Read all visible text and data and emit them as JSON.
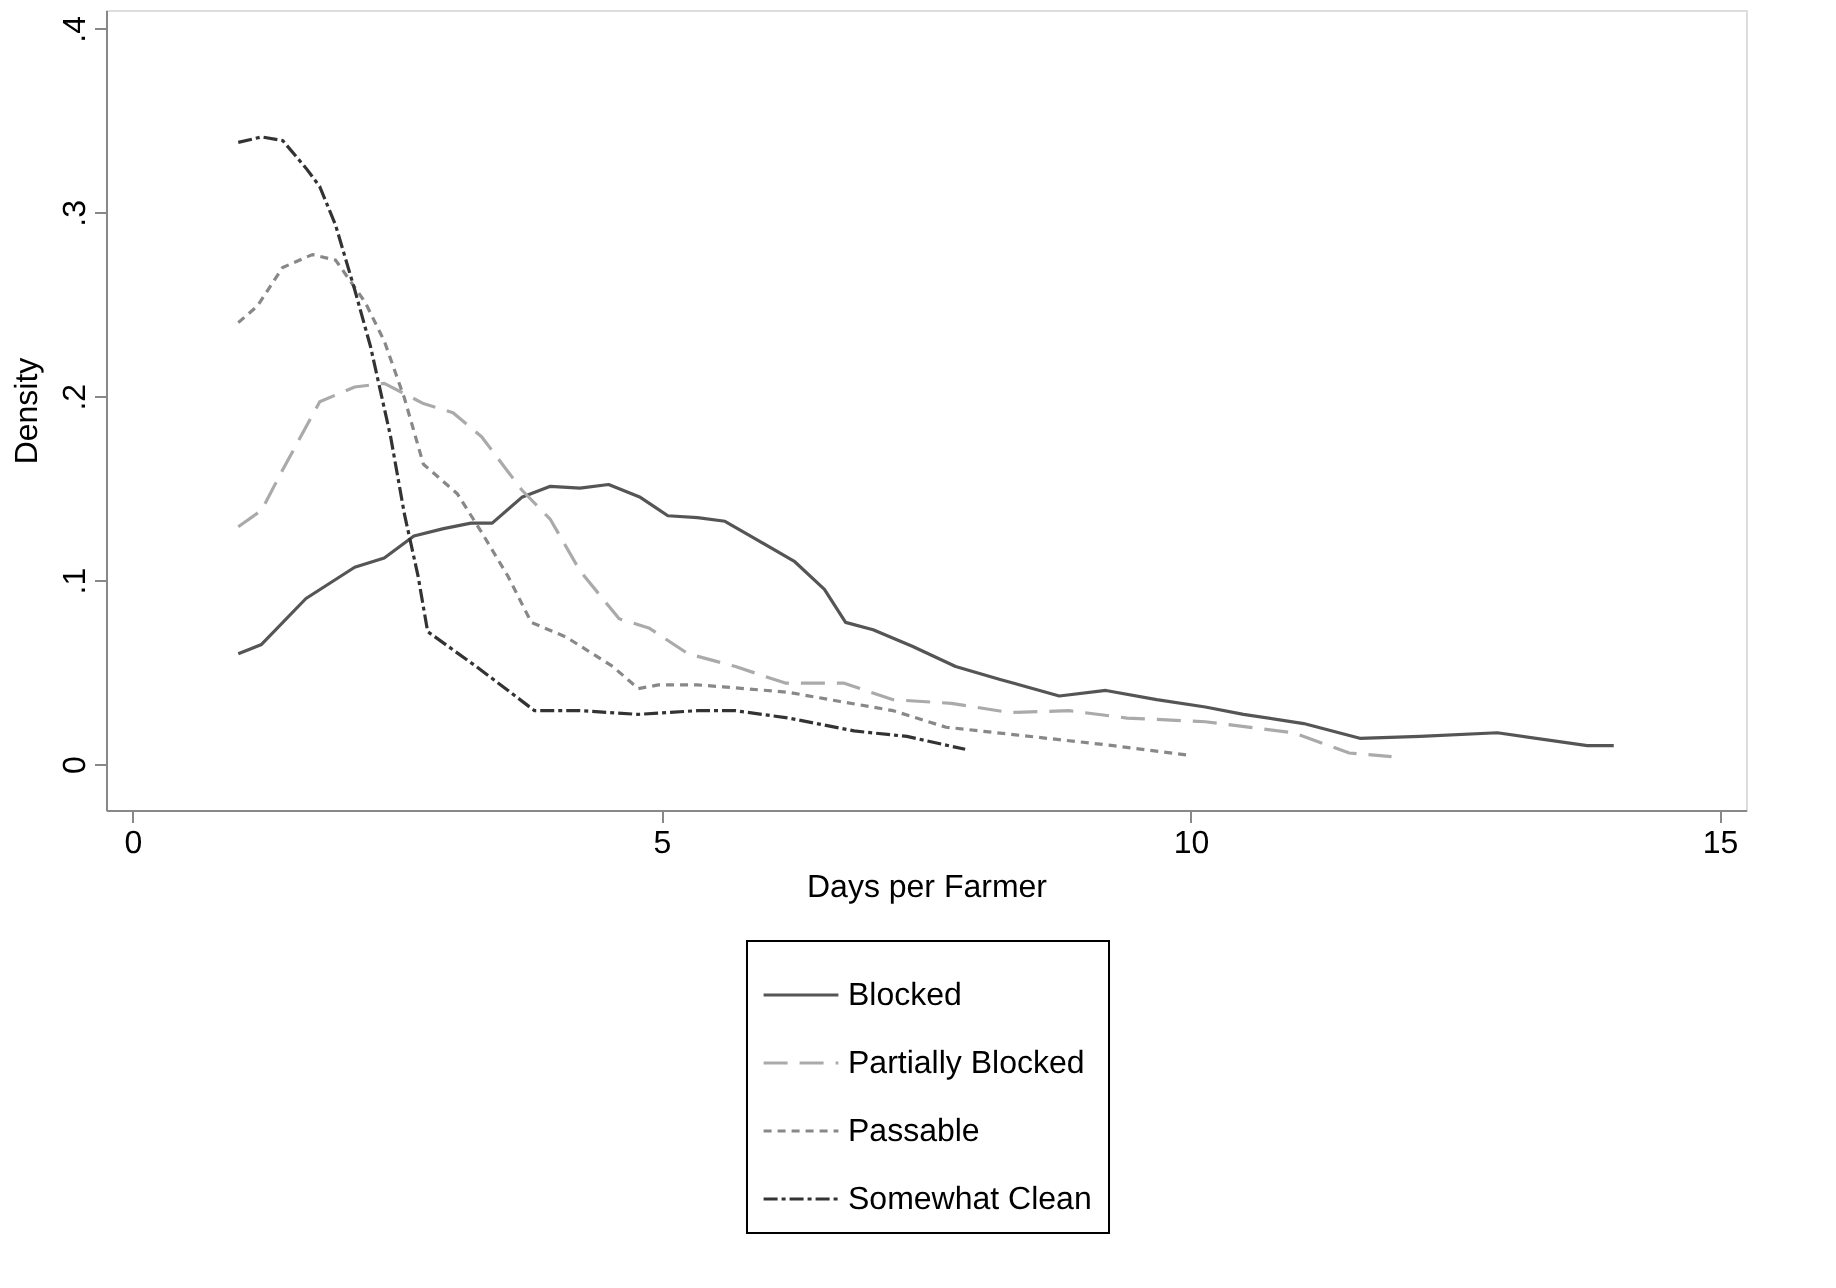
{
  "chart_data": {
    "type": "line",
    "xlabel": "Days per Farmer",
    "ylabel": "Density",
    "xlim": [
      -0.25,
      15.25
    ],
    "xticks": [
      0,
      5,
      10,
      15
    ],
    "ylim": [
      -0.025,
      0.41
    ],
    "yticks": [
      0,
      {
        "value": 0.1,
        "label": ".1"
      },
      {
        "value": 0.2,
        "label": ".2"
      },
      {
        "value": 0.3,
        "label": ".3"
      },
      {
        "value": 0.4,
        "label": ".4"
      }
    ],
    "grid": false,
    "legend": "bottom",
    "marker": "none",
    "series": [
      {
        "name": "Blocked",
        "color": "#555555",
        "line_style": "solid",
        "x": [
          1.0,
          1.22,
          1.64,
          2.1,
          2.38,
          2.66,
          2.94,
          3.2,
          3.4,
          3.68,
          3.95,
          4.23,
          4.5,
          4.8,
          5.06,
          5.34,
          5.6,
          5.9,
          6.26,
          6.54,
          6.74,
          7.0,
          7.37,
          7.78,
          8.2,
          8.76,
          9.2,
          9.68,
          10.14,
          10.5,
          11.07,
          11.6,
          12.17,
          12.9,
          13.75,
          14.0
        ],
        "values": [
          0.06,
          0.065,
          0.09,
          0.107,
          0.112,
          0.124,
          0.128,
          0.131,
          0.131,
          0.145,
          0.151,
          0.15,
          0.152,
          0.145,
          0.135,
          0.134,
          0.132,
          0.122,
          0.11,
          0.095,
          0.077,
          0.073,
          0.064,
          0.053,
          0.046,
          0.037,
          0.04,
          0.035,
          0.031,
          0.027,
          0.022,
          0.014,
          0.015,
          0.017,
          0.01,
          0.01
        ]
      },
      {
        "name": "Partially Blocked",
        "color": "#aaaaaa",
        "line_style": "dashed",
        "x": [
          1.0,
          1.22,
          1.42,
          1.77,
          2.1,
          2.38,
          2.75,
          3.03,
          3.3,
          3.68,
          3.95,
          4.23,
          4.6,
          4.88,
          5.25,
          5.7,
          6.17,
          6.72,
          7.19,
          7.74,
          8.29,
          8.85,
          9.4,
          10.14,
          10.97,
          11.5,
          11.9
        ],
        "values": [
          0.129,
          0.138,
          0.16,
          0.197,
          0.205,
          0.207,
          0.196,
          0.191,
          0.178,
          0.149,
          0.133,
          0.105,
          0.079,
          0.074,
          0.06,
          0.053,
          0.044,
          0.044,
          0.035,
          0.033,
          0.028,
          0.029,
          0.025,
          0.023,
          0.017,
          0.006,
          0.004
        ]
      },
      {
        "name": "Passable",
        "color": "#888888",
        "line_style": "dotted",
        "x": [
          1.0,
          1.18,
          1.42,
          1.7,
          1.92,
          2.2,
          2.38,
          2.57,
          2.75,
          3.07,
          3.3,
          3.55,
          3.77,
          4.1,
          4.54,
          4.78,
          4.97,
          5.34,
          5.58,
          6.2,
          6.69,
          7.19,
          7.69,
          8.17,
          8.8,
          9.27,
          9.96
        ],
        "values": [
          0.24,
          0.249,
          0.27,
          0.277,
          0.274,
          0.251,
          0.23,
          0.199,
          0.163,
          0.147,
          0.126,
          0.102,
          0.077,
          0.069,
          0.053,
          0.041,
          0.043,
          0.043,
          0.042,
          0.039,
          0.034,
          0.029,
          0.02,
          0.017,
          0.013,
          0.01,
          0.005
        ]
      },
      {
        "name": "Somewhat Clean",
        "color": "#333333",
        "line_style": "dashdot",
        "x": [
          1.0,
          1.22,
          1.42,
          1.64,
          1.77,
          1.92,
          2.1,
          2.25,
          2.44,
          2.57,
          2.7,
          2.79,
          3.25,
          3.55,
          3.8,
          4.23,
          4.78,
          5.34,
          5.7,
          6.2,
          6.82,
          7.32,
          7.87
        ],
        "values": [
          0.338,
          0.341,
          0.339,
          0.324,
          0.314,
          0.293,
          0.258,
          0.227,
          0.178,
          0.136,
          0.102,
          0.072,
          0.053,
          0.04,
          0.029,
          0.029,
          0.027,
          0.029,
          0.029,
          0.025,
          0.018,
          0.015,
          0.008
        ]
      }
    ]
  }
}
